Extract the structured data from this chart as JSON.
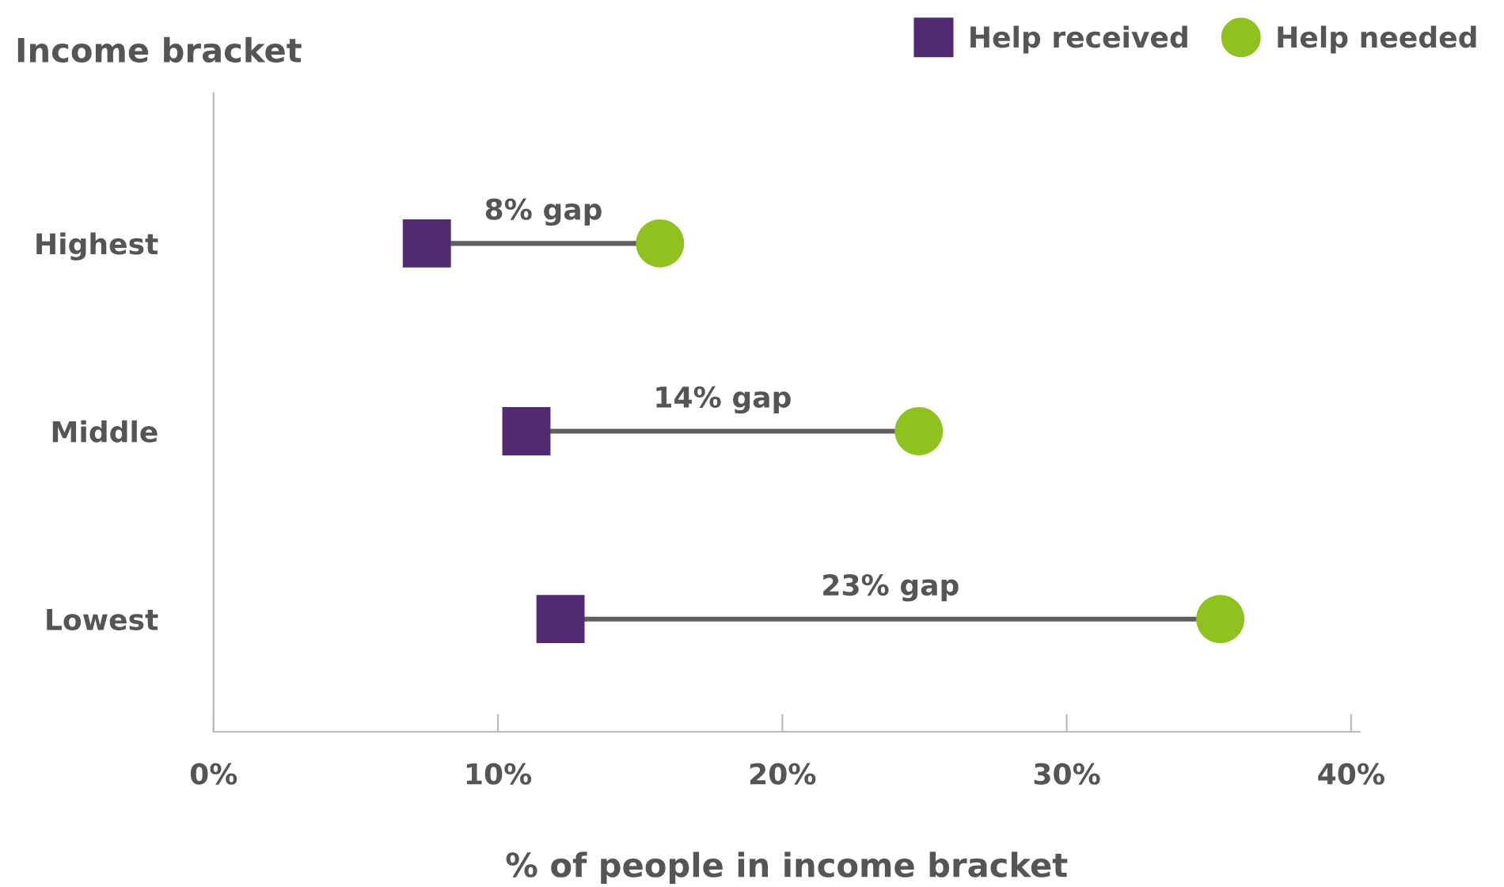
{
  "chart_data": {
    "type": "scatter",
    "orientation": "horizontal",
    "ylabel": "Income bracket",
    "xlabel": "% of people in income bracket",
    "categories": [
      "Highest",
      "Middle",
      "Lowest"
    ],
    "series": [
      {
        "name": "Help received",
        "color": "#512a6f",
        "marker": "square",
        "values": [
          7.5,
          11.0,
          12.2
        ]
      },
      {
        "name": "Help needed",
        "color": "#8fc21f",
        "marker": "circle",
        "values": [
          15.7,
          24.8,
          35.4
        ]
      }
    ],
    "xlim": [
      0,
      40.3
    ],
    "xticks": [
      {
        "value": 0,
        "label": "0%"
      },
      {
        "value": 10,
        "label": "10%"
      },
      {
        "value": 20,
        "label": "20%"
      },
      {
        "value": 30,
        "label": "30%"
      },
      {
        "value": 40,
        "label": "40%"
      }
    ],
    "annotations": [
      "8% gap",
      "14% gap",
      "23% gap"
    ],
    "legend": "top right"
  }
}
